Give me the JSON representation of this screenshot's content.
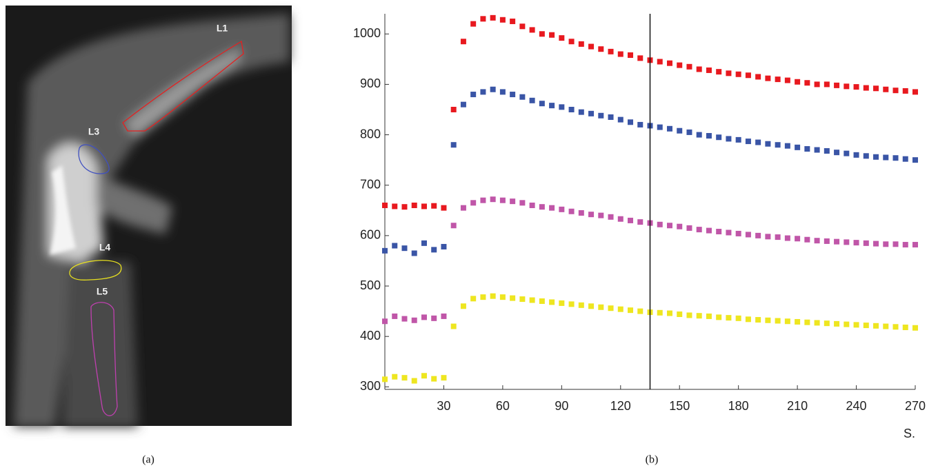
{
  "image": {
    "labels": [
      "L1",
      "L3",
      "L4",
      "L5"
    ]
  },
  "captions": [
    "(a)",
    "(b)"
  ],
  "chart_data": {
    "type": "scatter",
    "x_label": "S.",
    "xlim": [
      0,
      270
    ],
    "xticks": [
      30,
      60,
      90,
      120,
      150,
      180,
      210,
      240,
      270
    ],
    "ylim": [
      295,
      1040
    ],
    "yticks": [
      300,
      400,
      500,
      600,
      700,
      800,
      900,
      1000
    ],
    "marker_line_x": 135,
    "x": [
      0,
      5,
      10,
      15,
      20,
      25,
      30,
      35,
      40,
      45,
      50,
      55,
      60,
      65,
      70,
      75,
      80,
      85,
      90,
      95,
      100,
      105,
      110,
      115,
      120,
      125,
      130,
      135,
      140,
      145,
      150,
      155,
      160,
      165,
      170,
      175,
      180,
      185,
      190,
      195,
      200,
      205,
      210,
      215,
      220,
      225,
      230,
      235,
      240,
      245,
      250,
      255,
      260,
      265,
      270
    ],
    "series": [
      {
        "color": "#e8191f",
        "values": [
          660,
          658,
          657,
          660,
          658,
          659,
          655,
          850,
          985,
          1020,
          1030,
          1032,
          1028,
          1025,
          1015,
          1008,
          1000,
          998,
          992,
          985,
          980,
          975,
          970,
          965,
          960,
          958,
          952,
          948,
          945,
          942,
          938,
          935,
          930,
          928,
          925,
          922,
          920,
          918,
          915,
          912,
          910,
          908,
          905,
          903,
          900,
          900,
          898,
          896,
          895,
          893,
          892,
          890,
          888,
          887,
          885
        ]
      },
      {
        "color": "#3a55a6",
        "values": [
          570,
          580,
          575,
          565,
          585,
          572,
          578,
          780,
          860,
          880,
          885,
          890,
          885,
          880,
          875,
          868,
          862,
          858,
          855,
          850,
          845,
          842,
          838,
          835,
          830,
          825,
          820,
          818,
          815,
          812,
          808,
          805,
          800,
          798,
          795,
          792,
          790,
          787,
          785,
          782,
          780,
          778,
          775,
          772,
          770,
          768,
          765,
          763,
          760,
          758,
          756,
          755,
          754,
          752,
          750
        ]
      },
      {
        "color": "#c056a8",
        "values": [
          430,
          440,
          435,
          432,
          438,
          436,
          440,
          620,
          655,
          665,
          670,
          672,
          670,
          668,
          665,
          660,
          657,
          655,
          652,
          648,
          645,
          642,
          640,
          637,
          633,
          630,
          627,
          625,
          622,
          620,
          618,
          615,
          612,
          610,
          608,
          606,
          604,
          602,
          600,
          598,
          597,
          595,
          594,
          592,
          590,
          589,
          588,
          587,
          586,
          585,
          584,
          583,
          583,
          582,
          582
        ]
      },
      {
        "color": "#eee620",
        "values": [
          315,
          320,
          318,
          312,
          322,
          316,
          318,
          420,
          460,
          475,
          478,
          480,
          478,
          476,
          474,
          472,
          470,
          468,
          466,
          464,
          462,
          460,
          458,
          456,
          454,
          452,
          450,
          448,
          447,
          446,
          444,
          442,
          441,
          440,
          438,
          437,
          436,
          434,
          433,
          432,
          431,
          430,
          429,
          428,
          427,
          426,
          425,
          424,
          423,
          422,
          421,
          420,
          419,
          418,
          417
        ]
      }
    ]
  }
}
